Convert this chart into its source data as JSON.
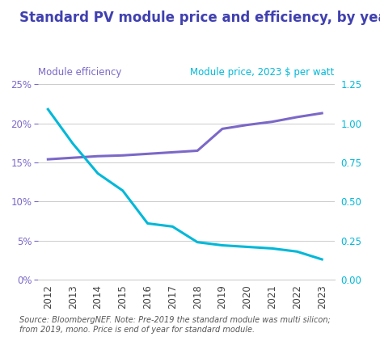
{
  "title": "Standard PV module price and efficiency, by year",
  "title_color": "#4040b0",
  "years": [
    2012,
    2013,
    2014,
    2015,
    2016,
    2017,
    2018,
    2019,
    2020,
    2021,
    2022,
    2023
  ],
  "efficiency": [
    0.154,
    0.156,
    0.158,
    0.159,
    0.161,
    0.163,
    0.165,
    0.193,
    0.198,
    0.202,
    0.208,
    0.213
  ],
  "price": [
    1.09,
    0.87,
    0.68,
    0.57,
    0.36,
    0.34,
    0.24,
    0.22,
    0.21,
    0.2,
    0.18,
    0.13
  ],
  "efficiency_color": "#7b68c8",
  "price_color": "#00b8d8",
  "left_axis_label": "Module efficiency",
  "right_axis_label": "Module price, 2023 $ per watt",
  "left_label_color": "#7b68c8",
  "right_label_color": "#00b8d8",
  "ylim_left": [
    0.0,
    0.25
  ],
  "ylim_right": [
    0.0,
    1.25
  ],
  "yticks_left": [
    0.0,
    0.05,
    0.1,
    0.15,
    0.2,
    0.25
  ],
  "ytick_labels_left": [
    "0%",
    "5%",
    "10%",
    "15%",
    "20%",
    "25%"
  ],
  "yticks_right": [
    0.0,
    0.25,
    0.5,
    0.75,
    1.0,
    1.25
  ],
  "ytick_labels_right": [
    "0.00",
    "0.25",
    "0.50",
    "0.75",
    "1.00",
    "1.25"
  ],
  "source_text": "Source: BloombergNEF. Note: Pre-2019 the standard module was multi silicon;\nfrom 2019, mono. Price is end of year for standard module.",
  "background_color": "#ffffff",
  "grid_color": "#cccccc",
  "line_width": 2.2,
  "title_fontsize": 12,
  "tick_fontsize": 8.5,
  "label_fontsize": 8.5,
  "source_fontsize": 7.0
}
